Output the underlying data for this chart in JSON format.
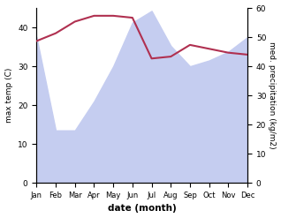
{
  "months": [
    "Jan",
    "Feb",
    "Mar",
    "Apr",
    "May",
    "Jun",
    "Jul",
    "Aug",
    "Sep",
    "Oct",
    "Nov",
    "Dec"
  ],
  "month_indices": [
    0,
    1,
    2,
    3,
    4,
    5,
    6,
    7,
    8,
    9,
    10,
    11
  ],
  "temp_max": [
    36.5,
    38.5,
    41.5,
    43.0,
    43.0,
    42.5,
    32.0,
    32.5,
    35.5,
    34.5,
    33.5,
    33.0
  ],
  "precipitation": [
    50,
    18,
    18,
    28,
    40,
    55,
    59,
    47,
    40,
    42,
    45,
    50
  ],
  "temp_color": "#b03050",
  "precip_fill_color": "#c5cdf0",
  "precip_line_color": "#c5cdf0",
  "xlabel": "date (month)",
  "ylabel_left": "max temp (C)",
  "ylabel_right": "med. precipitation (kg/m2)",
  "ylim_left": [
    0,
    45
  ],
  "ylim_right": [
    0,
    60
  ],
  "yticks_left": [
    0,
    10,
    20,
    30,
    40
  ],
  "yticks_right": [
    0,
    10,
    20,
    30,
    40,
    50,
    60
  ],
  "bg_color": "#ffffff"
}
